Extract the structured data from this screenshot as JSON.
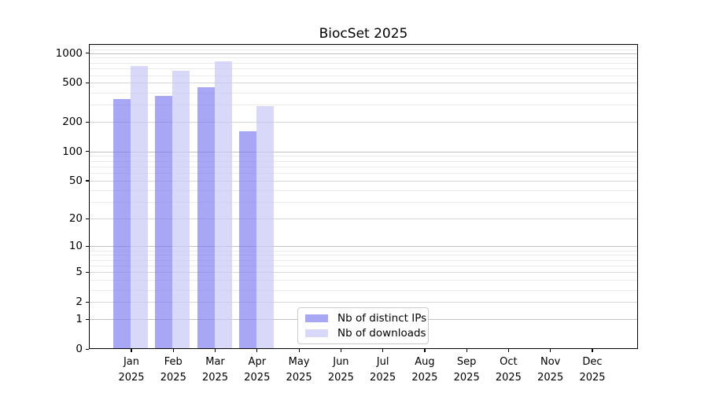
{
  "title": "BiocSet 2025",
  "chart_data": {
    "type": "bar",
    "title": "BiocSet 2025",
    "categories": [
      "Jan 2025",
      "Feb 2025",
      "Mar 2025",
      "Apr 2025",
      "May 2025",
      "Jun 2025",
      "Jul 2025",
      "Aug 2025",
      "Sep 2025",
      "Oct 2025",
      "Nov 2025",
      "Dec 2025"
    ],
    "series": [
      {
        "name": "Nb of distinct IPs",
        "values": [
          345,
          370,
          452,
          162,
          null,
          null,
          null,
          null,
          null,
          null,
          null,
          null
        ]
      },
      {
        "name": "Nb of downloads",
        "values": [
          745,
          670,
          835,
          290,
          null,
          null,
          null,
          null,
          null,
          null,
          null,
          null
        ]
      }
    ],
    "yticks": [
      0,
      1,
      2,
      5,
      10,
      20,
      50,
      100,
      200,
      500,
      1000
    ],
    "minor_gridline_values": [
      3,
      4,
      6,
      7,
      8,
      9,
      30,
      40,
      60,
      70,
      80,
      90,
      300,
      400,
      600,
      700,
      800,
      900,
      1100,
      1200
    ],
    "ylim": [
      0,
      1240
    ],
    "y_scale": "log1p",
    "grid": "horizontal",
    "legend_position": "lower center inside"
  },
  "legend": {
    "items": [
      {
        "label": "Nb of distinct IPs",
        "color": "#a7a7f3"
      },
      {
        "label": "Nb of downloads",
        "color": "#d8d8f8"
      }
    ]
  },
  "colors": {
    "bar_ips": "rgba(120,120,240,0.65)",
    "bar_downloads": "rgba(200,200,245,0.70)",
    "grid_decade": "#c2c2c2",
    "grid_labeled": "#d6d6d6",
    "grid_minor": "#ebebeb",
    "axis": "#000000",
    "background": "#ffffff"
  }
}
